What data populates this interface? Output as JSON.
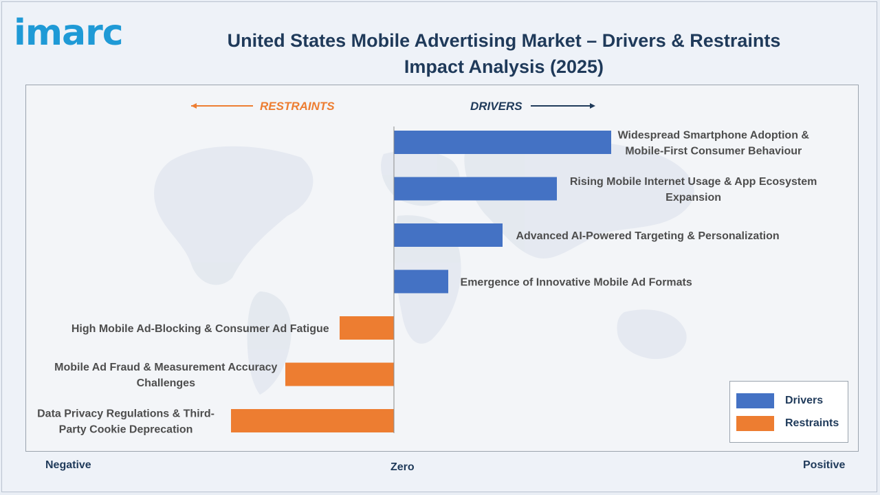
{
  "brand": {
    "logo_text": "imarc"
  },
  "title": "United States Mobile Advertising Market – Drivers & Restraints Impact Analysis (2025)",
  "axis_labels": {
    "negative": "Negative",
    "zero": "Zero",
    "positive": "Positive"
  },
  "direction_labels": {
    "restraints": "RESTRAINTS",
    "drivers": "DRIVERS"
  },
  "colors": {
    "drivers": "#4472c4",
    "restraints": "#ed7d31",
    "text": "#4d4d4d",
    "title": "#1f3a5a"
  },
  "legend": [
    {
      "label": "Drivers",
      "color": "#4472c4"
    },
    {
      "label": "Restraints",
      "color": "#ed7d31"
    }
  ],
  "chart_data": {
    "type": "bar",
    "orientation": "horizontal",
    "xlim": [
      -3,
      4
    ],
    "categories": [
      [
        "Widespread Smartphone Adoption &",
        "Mobile-First Consumer Behaviour"
      ],
      [
        "Rising Mobile Internet Usage & App Ecosystem",
        "Expansion"
      ],
      [
        "Advanced AI-Powered Targeting & Personalization"
      ],
      [
        "Emergence of Innovative Mobile Ad Formats"
      ],
      [
        "High Mobile Ad-Blocking & Consumer Ad Fatigue"
      ],
      [
        "Mobile Ad Fraud & Measurement Accuracy",
        "Challenges"
      ],
      [
        "Data Privacy Regulations & Third-",
        "Party Cookie Deprecation"
      ]
    ],
    "series": [
      {
        "name": "Drivers",
        "values": [
          4,
          3,
          2,
          1,
          null,
          null,
          null
        ]
      },
      {
        "name": "Restraints",
        "values": [
          null,
          null,
          null,
          null,
          -1,
          -2,
          -3
        ]
      }
    ],
    "legend_position": "bottom-right",
    "grid": false
  }
}
